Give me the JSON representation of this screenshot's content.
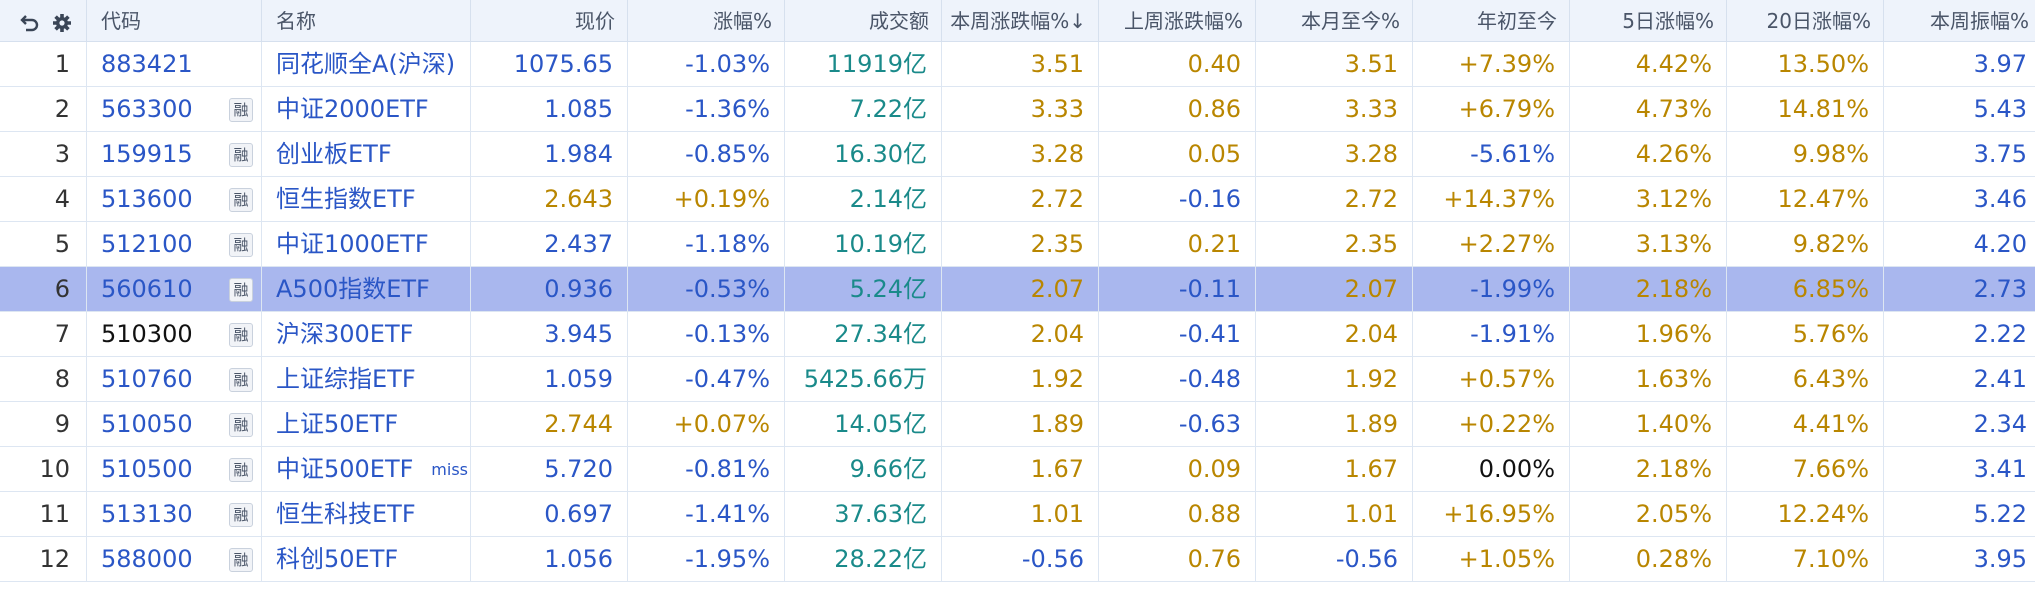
{
  "header": {
    "icons": [
      "undo-icon",
      "gear-icon"
    ],
    "columns": [
      "代码",
      "名称",
      "现价",
      "涨幅%",
      "成交额",
      "本周涨跌幅%↓",
      "上周涨跌幅%",
      "本月至今%",
      "年初至今",
      "5日涨幅%",
      "20日涨幅%",
      "本周振幅%"
    ]
  },
  "badge_label": "融",
  "rows": [
    {
      "idx": "1",
      "code": "883421",
      "margin": false,
      "name": "同花顺全A(沪深)",
      "tag": "",
      "price": "1075.65",
      "chg": "-1.03%",
      "amount": "11919亿",
      "wk": "3.51",
      "lastwk": "0.40",
      "mtd": "3.51",
      "ytd": "+7.39%",
      "d5": "4.42%",
      "d20": "13.50%",
      "amp": "3.97"
    },
    {
      "idx": "2",
      "code": "563300",
      "margin": true,
      "name": "中证2000ETF",
      "tag": "",
      "price": "1.085",
      "chg": "-1.36%",
      "amount": "7.22亿",
      "wk": "3.33",
      "lastwk": "0.86",
      "mtd": "3.33",
      "ytd": "+6.79%",
      "d5": "4.73%",
      "d20": "14.81%",
      "amp": "5.43"
    },
    {
      "idx": "3",
      "code": "159915",
      "margin": true,
      "name": "创业板ETF",
      "tag": "",
      "price": "1.984",
      "chg": "-0.85%",
      "amount": "16.30亿",
      "wk": "3.28",
      "lastwk": "0.05",
      "mtd": "3.28",
      "ytd": "-5.61%",
      "d5": "4.26%",
      "d20": "9.98%",
      "amp": "3.75"
    },
    {
      "idx": "4",
      "code": "513600",
      "margin": true,
      "name": "恒生指数ETF",
      "tag": "",
      "price": "2.643",
      "chg": "+0.19%",
      "amount": "2.14亿",
      "wk": "2.72",
      "lastwk": "-0.16",
      "mtd": "2.72",
      "ytd": "+14.37%",
      "d5": "3.12%",
      "d20": "12.47%",
      "amp": "3.46"
    },
    {
      "idx": "5",
      "code": "512100",
      "margin": true,
      "name": "中证1000ETF",
      "tag": "",
      "price": "2.437",
      "chg": "-1.18%",
      "amount": "10.19亿",
      "wk": "2.35",
      "lastwk": "0.21",
      "mtd": "2.35",
      "ytd": "+2.27%",
      "d5": "3.13%",
      "d20": "9.82%",
      "amp": "4.20"
    },
    {
      "idx": "6",
      "code": "560610",
      "margin": true,
      "name": "A500指数ETF",
      "tag": "",
      "price": "0.936",
      "chg": "-0.53%",
      "amount": "5.24亿",
      "wk": "2.07",
      "lastwk": "-0.11",
      "mtd": "2.07",
      "ytd": "-1.99%",
      "d5": "2.18%",
      "d20": "6.85%",
      "amp": "2.73"
    },
    {
      "idx": "7",
      "code": "510300",
      "margin": true,
      "name": "沪深300ETF",
      "tag": "",
      "price": "3.945",
      "chg": "-0.13%",
      "amount": "27.34亿",
      "wk": "2.04",
      "lastwk": "-0.41",
      "mtd": "2.04",
      "ytd": "-1.91%",
      "d5": "1.96%",
      "d20": "5.76%",
      "amp": "2.22"
    },
    {
      "idx": "8",
      "code": "510760",
      "margin": true,
      "name": "上证综指ETF",
      "tag": "",
      "price": "1.059",
      "chg": "-0.47%",
      "amount": "5425.66万",
      "wk": "1.92",
      "lastwk": "-0.48",
      "mtd": "1.92",
      "ytd": "+0.57%",
      "d5": "1.63%",
      "d20": "6.43%",
      "amp": "2.41"
    },
    {
      "idx": "9",
      "code": "510050",
      "margin": true,
      "name": "上证50ETF",
      "tag": "",
      "price": "2.744",
      "chg": "+0.07%",
      "amount": "14.05亿",
      "wk": "1.89",
      "lastwk": "-0.63",
      "mtd": "1.89",
      "ytd": "+0.22%",
      "d5": "1.40%",
      "d20": "4.41%",
      "amp": "2.34"
    },
    {
      "idx": "10",
      "code": "510500",
      "margin": true,
      "name": "中证500ETF",
      "tag": "miss",
      "price": "5.720",
      "chg": "-0.81%",
      "amount": "9.66亿",
      "wk": "1.67",
      "lastwk": "0.09",
      "mtd": "1.67",
      "ytd": "0.00%",
      "d5": "2.18%",
      "d20": "7.66%",
      "amp": "3.41"
    },
    {
      "idx": "11",
      "code": "513130",
      "margin": true,
      "name": "恒生科技ETF",
      "tag": "",
      "price": "0.697",
      "chg": "-1.41%",
      "amount": "37.63亿",
      "wk": "1.01",
      "lastwk": "0.88",
      "mtd": "1.01",
      "ytd": "+16.95%",
      "d5": "2.05%",
      "d20": "12.24%",
      "amp": "5.22"
    },
    {
      "idx": "12",
      "code": "588000",
      "margin": true,
      "name": "科创50ETF",
      "tag": "",
      "price": "1.056",
      "chg": "-1.95%",
      "amount": "28.22亿",
      "wk": "-0.56",
      "lastwk": "0.76",
      "mtd": "-0.56",
      "ytd": "+1.05%",
      "d5": "0.28%",
      "d20": "7.10%",
      "amp": "3.95"
    }
  ],
  "selected_row": "6",
  "colors": {
    "up": "#b98600",
    "down": "#2a56c6",
    "amount": "#1a8a8a",
    "selected_bg": "#a9b7ee",
    "header_bg": "#eef3fb"
  }
}
